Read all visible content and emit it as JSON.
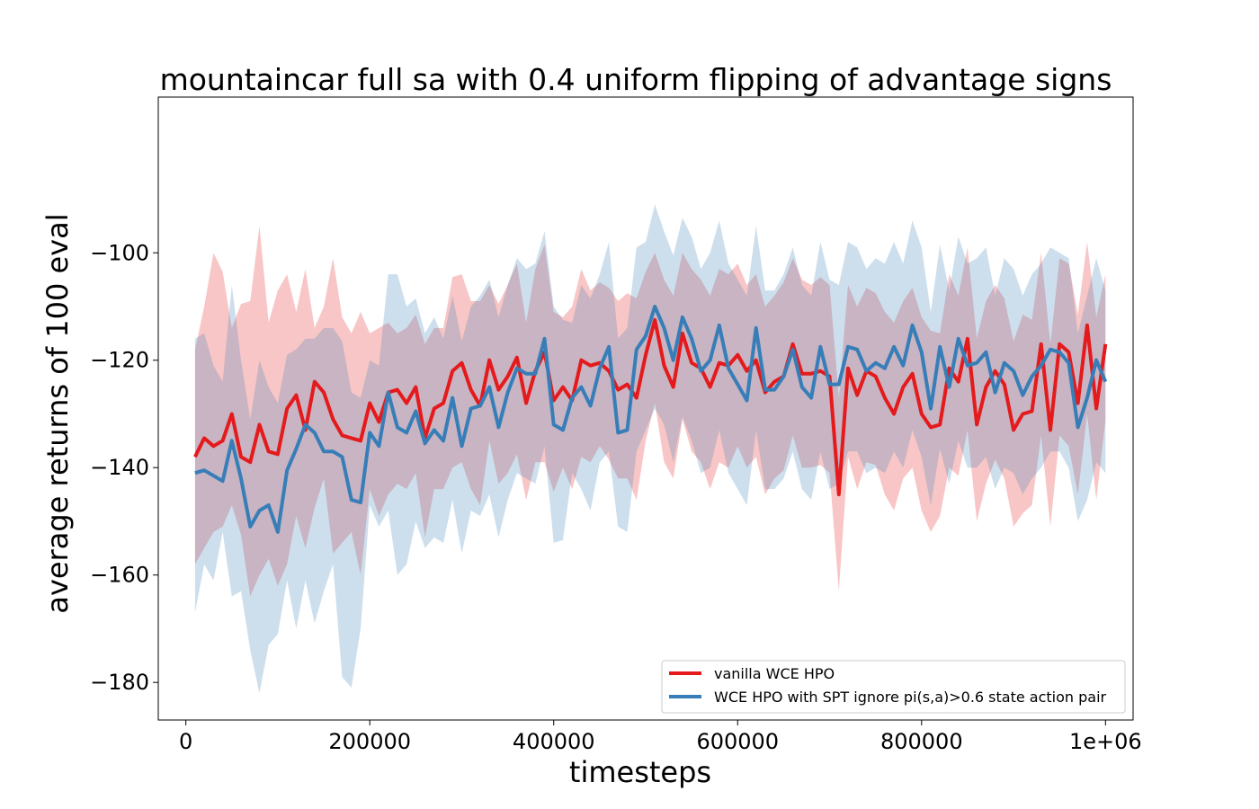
{
  "chart_data": {
    "type": "line",
    "title": "mountaincar full sa with 0.4 uniform flipping of advantage signs",
    "xlabel": "timesteps",
    "ylabel": "average returns of 100 eval",
    "xlim": [
      -30000,
      1030000
    ],
    "ylim": [
      -187,
      -71
    ],
    "xticks": [
      0,
      200000,
      400000,
      600000,
      800000,
      1000000
    ],
    "xtick_labels": [
      "0",
      "200000",
      "400000",
      "600000",
      "800000",
      "1e+06"
    ],
    "yticks": [
      -100,
      -120,
      -140,
      -160,
      -180
    ],
    "ytick_labels": [
      "−100",
      "−120",
      "−140",
      "−160",
      "−180"
    ],
    "grid": false,
    "legend_position": "lower-right",
    "shaded_band": "mean ± spread",
    "x": [
      10000,
      20000,
      30000,
      40000,
      50000,
      60000,
      70000,
      80000,
      90000,
      100000,
      110000,
      120000,
      130000,
      140000,
      150000,
      160000,
      170000,
      180000,
      190000,
      200000,
      210000,
      220000,
      230000,
      240000,
      250000,
      260000,
      270000,
      280000,
      290000,
      300000,
      310000,
      320000,
      330000,
      340000,
      350000,
      360000,
      370000,
      380000,
      390000,
      400000,
      410000,
      420000,
      430000,
      440000,
      450000,
      460000,
      470000,
      480000,
      490000,
      500000,
      510000,
      520000,
      530000,
      540000,
      550000,
      560000,
      570000,
      580000,
      590000,
      600000,
      610000,
      620000,
      630000,
      640000,
      650000,
      660000,
      670000,
      680000,
      690000,
      700000,
      710000,
      720000,
      730000,
      740000,
      750000,
      760000,
      770000,
      780000,
      790000,
      800000,
      810000,
      820000,
      830000,
      840000,
      850000,
      860000,
      870000,
      880000,
      890000,
      900000,
      910000,
      920000,
      930000,
      940000,
      950000,
      960000,
      970000,
      980000,
      990000,
      1000000
    ],
    "series": [
      {
        "name": "vanilla WCE HPO",
        "color": "#e41a1c",
        "values": [
          -138,
          -134.5,
          -136,
          -135,
          -130,
          -138,
          -139,
          -132,
          -137,
          -137.5,
          -129,
          -126.5,
          -133,
          -124,
          -126,
          -131,
          -134,
          -134.5,
          -135,
          -128,
          -131.5,
          -126,
          -125.5,
          -128,
          -125,
          -134.5,
          -129,
          -128,
          -122,
          -120.5,
          -125.5,
          -128.5,
          -120,
          -125.5,
          -123,
          -119.5,
          -128,
          -122,
          -118.5,
          -127.5,
          -125,
          -127.5,
          -120,
          -121,
          -120.5,
          -122,
          -125.5,
          -124.5,
          -127,
          -119,
          -112.5,
          -121,
          -125,
          -115,
          -120.5,
          -121.5,
          -125,
          -120.5,
          -121,
          -119,
          -122,
          -120,
          -126,
          -124,
          -123,
          -117,
          -122.5,
          -122.5,
          -122,
          -123,
          -145,
          -121.5,
          -126.5,
          -122,
          -123,
          -127,
          -130,
          -125,
          -122.5,
          -130,
          -132.5,
          -132,
          -121.5,
          -124,
          -116,
          -132,
          -125,
          -122,
          -124.5,
          -133,
          -130,
          -129.5,
          -117,
          -133,
          -117,
          -118.5,
          -128,
          -113.5,
          -129,
          -117
        ],
        "upper": [
          -118,
          -110,
          -100,
          -103.5,
          -114,
          -109.5,
          -109,
          -95,
          -113,
          -107,
          -104,
          -111,
          -103,
          -114,
          -110,
          -101,
          -112,
          -115,
          -111,
          -115,
          -114,
          -113,
          -115,
          -114,
          -111.5,
          -117,
          -114,
          -114,
          -104.5,
          -104,
          -109,
          -109,
          -106,
          -109.5,
          -106,
          -102,
          -113,
          -103,
          -98.5,
          -111,
          -112,
          -110,
          -103,
          -107,
          -105.5,
          -106.5,
          -109,
          -107.5,
          -108.5,
          -103.5,
          -100,
          -105,
          -108,
          -100,
          -103,
          -105,
          -108,
          -103,
          -104,
          -102,
          -106,
          -104,
          -110,
          -108,
          -105.5,
          -101,
          -105,
          -106,
          -104.5,
          -106,
          -127,
          -106,
          -110,
          -106.5,
          -107.5,
          -111,
          -113,
          -109,
          -106.5,
          -112,
          -114.5,
          -115,
          -104,
          -108,
          -99,
          -116,
          -109,
          -106,
          -108.5,
          -116.5,
          -111.5,
          -112.5,
          -100,
          -117,
          -101,
          -102,
          -111.5,
          -98,
          -112,
          -104
        ],
        "lower": [
          -158,
          -155,
          -152,
          -151,
          -147,
          -152.5,
          -164,
          -160,
          -157,
          -162,
          -158,
          -149,
          -155,
          -147.5,
          -142,
          -156,
          -154,
          -152,
          -160,
          -144,
          -149,
          -145,
          -143,
          -144,
          -141,
          -153,
          -144,
          -144,
          -140,
          -139,
          -144,
          -147,
          -135,
          -143,
          -141,
          -137.5,
          -146,
          -139,
          -139,
          -144.5,
          -140,
          -144,
          -138,
          -139,
          -136,
          -138.5,
          -142,
          -142,
          -146,
          -135,
          -128,
          -139,
          -142,
          -131,
          -137,
          -139,
          -144,
          -139,
          -140,
          -136,
          -140,
          -138,
          -145,
          -142,
          -140.5,
          -134,
          -140,
          -140,
          -139.5,
          -141,
          -163,
          -138,
          -144,
          -139,
          -139.5,
          -145,
          -148,
          -142,
          -140,
          -148,
          -152,
          -149,
          -140,
          -141.5,
          -133,
          -150,
          -143,
          -138.5,
          -142,
          -151,
          -148.5,
          -147,
          -134,
          -151,
          -134,
          -136,
          -145,
          -130,
          -146,
          -131
        ]
      },
      {
        "name": "WCE HPO with SPT ignore pi(s,a)>0.6 state action pair",
        "color": "#377eb8",
        "values": [
          -141,
          -140.5,
          -141.5,
          -142.5,
          -135,
          -142,
          -151,
          -148,
          -147,
          -152,
          -140.5,
          -136.5,
          -132,
          -133.5,
          -137,
          -137,
          -138,
          -146,
          -146.5,
          -133.5,
          -136,
          -126,
          -132.5,
          -133.5,
          -129.5,
          -135.5,
          -133,
          -135,
          -127,
          -136,
          -129,
          -128.5,
          -125,
          -132.5,
          -126,
          -121.5,
          -122.5,
          -122.5,
          -116,
          -132,
          -133,
          -127,
          -125,
          -128.5,
          -121.5,
          -117.5,
          -133.5,
          -133,
          -118,
          -115.5,
          -110,
          -114,
          -120,
          -112,
          -116,
          -122,
          -120,
          -113.5,
          -121.5,
          -124.5,
          -127.5,
          -114,
          -125.5,
          -125.5,
          -123,
          -118,
          -125,
          -127,
          -117.5,
          -124.5,
          -124.5,
          -117.5,
          -118,
          -122,
          -120.5,
          -121.5,
          -117.5,
          -121,
          -113.5,
          -118.5,
          -129,
          -117.5,
          -125,
          -116,
          -121,
          -120.5,
          -118.5,
          -126,
          -120.5,
          -122,
          -126.5,
          -123,
          -121,
          -118,
          -118.5,
          -120.5,
          -132.5,
          -127,
          -120,
          -124
        ],
        "upper": [
          -116,
          -115,
          -121,
          -124,
          -106,
          -120,
          -131,
          -120,
          -125,
          -128,
          -119,
          -118,
          -116,
          -116,
          -114,
          -114,
          -116.5,
          -126,
          -127,
          -120,
          -121,
          -104,
          -104,
          -110,
          -108.5,
          -115,
          -112,
          -116,
          -108,
          -116.5,
          -110,
          -108,
          -105,
          -112,
          -106,
          -101,
          -103,
          -102,
          -96,
          -110,
          -112.5,
          -113,
          -106,
          -108.5,
          -104,
          -98,
          -116,
          -114,
          -99,
          -98,
          -91,
          -96,
          -100.5,
          -93.5,
          -97,
          -103,
          -100,
          -94,
          -102,
          -105,
          -108,
          -95,
          -107,
          -107,
          -104,
          -99,
          -106,
          -108,
          -98,
          -105,
          -106,
          -98,
          -99,
          -103,
          -101,
          -102,
          -98,
          -102,
          -94,
          -99,
          -111,
          -98.5,
          -107,
          -97,
          -102,
          -101,
          -99,
          -108,
          -101,
          -103,
          -108,
          -104,
          -102,
          -99,
          -100,
          -101,
          -115,
          -108,
          -101,
          -107
        ],
        "lower": [
          -167,
          -158,
          -161,
          -152,
          -164,
          -163,
          -174,
          -182,
          -173,
          -171,
          -161,
          -170,
          -161,
          -169,
          -163,
          -158,
          -179,
          -181,
          -170,
          -147,
          -151,
          -148,
          -160,
          -158,
          -150,
          -155,
          -153,
          -154,
          -146,
          -156,
          -148,
          -149,
          -145,
          -153,
          -146,
          -141,
          -142,
          -143,
          -136,
          -154,
          -153.5,
          -141,
          -144,
          -148,
          -139,
          -137,
          -151,
          -152,
          -137,
          -133,
          -129,
          -132,
          -139,
          -130.5,
          -135,
          -141,
          -140,
          -133,
          -141,
          -144,
          -147,
          -133,
          -144,
          -144,
          -142,
          -137,
          -144,
          -146,
          -137,
          -144,
          -143,
          -137,
          -137,
          -141,
          -140,
          -141,
          -137,
          -140,
          -133,
          -138,
          -147,
          -136.5,
          -143,
          -135,
          -140,
          -140,
          -138,
          -144,
          -140,
          -141,
          -145,
          -142,
          -140,
          -137,
          -137,
          -140,
          -150,
          -146,
          -139,
          -141
        ]
      }
    ]
  }
}
